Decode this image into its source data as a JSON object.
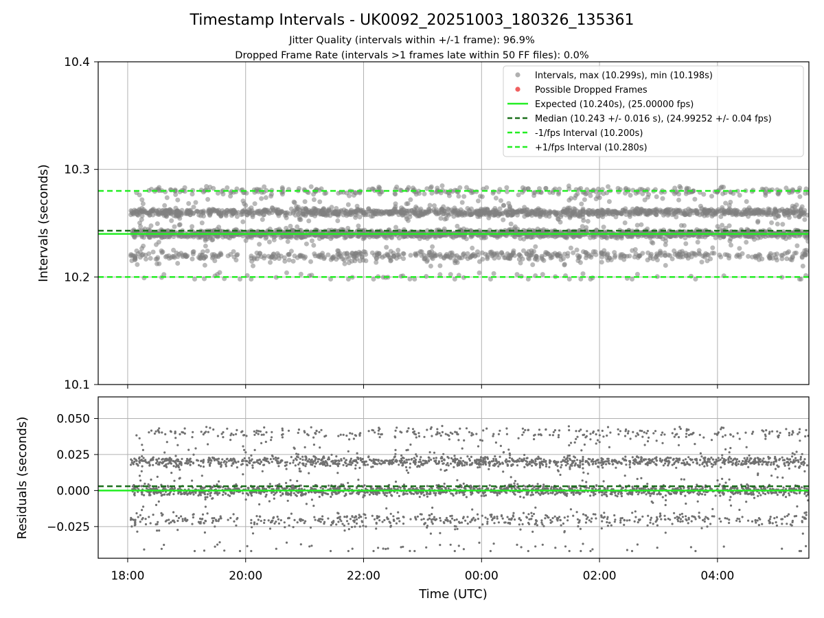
{
  "chart_data": [
    {
      "type": "scatter",
      "title": "Timestamp Intervals - UK0092_20251003_180326_135361",
      "subtitle_lines": [
        "Jitter Quality (intervals within +/-1 frame): 96.9%",
        "Dropped Frame Rate (intervals >1 frames late within 50 FF files): 0.0%"
      ],
      "xlabel": "Time (UTC)",
      "ylabel": "Intervals (seconds)",
      "xlim_hours": [
        -0.5,
        11.55
      ],
      "ylim": [
        10.1,
        10.4
      ],
      "yticks": [
        10.1,
        10.2,
        10.3,
        10.4
      ],
      "ytick_labels": [
        "10.1",
        "10.2",
        "10.3",
        "10.4"
      ],
      "xticks_hours": [
        0,
        2,
        4,
        6,
        8,
        10
      ],
      "xtick_labels": [
        "18:00",
        "20:00",
        "22:00",
        "00:00",
        "02:00",
        "04:00"
      ],
      "grid": true,
      "legend_position": "top-right",
      "series": [
        {
          "name": "Intervals, max (10.299s), min (10.198s)",
          "kind": "points",
          "color": "#808080",
          "x_range_hours": [
            0.05,
            11.55
          ],
          "max": 10.299,
          "min": 10.198,
          "clusters": [
            10.24,
            10.26,
            10.22,
            10.28,
            10.2
          ]
        },
        {
          "name": "Possible Dropped Frames",
          "kind": "points",
          "color": "#f06060",
          "count": 0
        },
        {
          "name": "Expected (10.240s), (25.00000 fps)",
          "kind": "hline",
          "value": 10.24,
          "style": "solid",
          "color": "#22ee22"
        },
        {
          "name": "Median (10.243 +/- 0.016 s), (24.99252 +/- 0.04 fps)",
          "kind": "hline",
          "value": 10.243,
          "style": "dashed",
          "color": "#1a6e1a"
        },
        {
          "name": "-1/fps Interval (10.200s)",
          "kind": "hline",
          "value": 10.2,
          "style": "dashed",
          "color": "#22ee22"
        },
        {
          "name": "+1/fps Interval (10.280s)",
          "kind": "hline",
          "value": 10.28,
          "style": "dashed",
          "color": "#22ee22"
        }
      ]
    },
    {
      "type": "scatter",
      "xlabel": "Time (UTC)",
      "ylabel": "Residuals (seconds)",
      "xlim_hours": [
        -0.5,
        11.55
      ],
      "ylim": [
        -0.047,
        0.065
      ],
      "yticks": [
        -0.025,
        0.0,
        0.025,
        0.05
      ],
      "ytick_labels": [
        "−0.025",
        "0.000",
        "0.025",
        "0.050"
      ],
      "xticks_hours": [
        0,
        2,
        4,
        6,
        8,
        10
      ],
      "xtick_labels": [
        "18:00",
        "20:00",
        "22:00",
        "00:00",
        "02:00",
        "04:00"
      ],
      "grid": true,
      "series": [
        {
          "name": "Residuals",
          "kind": "points",
          "color": "#707070",
          "clusters": [
            0.0,
            0.02,
            -0.02,
            0.04,
            -0.04
          ]
        },
        {
          "name": "Expected",
          "kind": "hline",
          "value": 0.0,
          "style": "solid",
          "color": "#22ee22"
        },
        {
          "name": "Median",
          "kind": "hline",
          "value": 0.003,
          "style": "dashed",
          "color": "#1a6e1a"
        }
      ]
    }
  ]
}
